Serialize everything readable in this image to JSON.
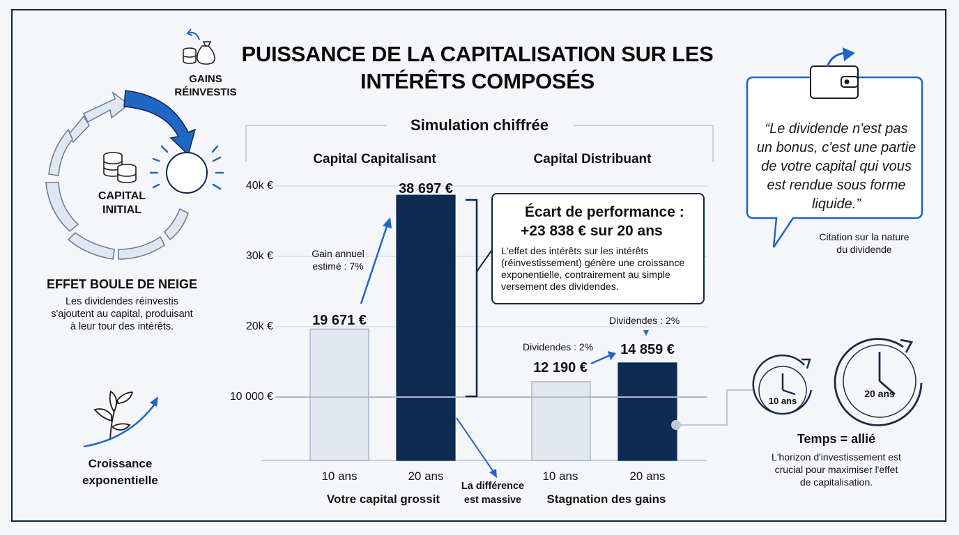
{
  "title": "PUISSANCE DE LA CAPITALISATION SUR LES INTÉRÊTS COMPOSÉS",
  "simulation_title": "Simulation chiffrée",
  "left_panel": {
    "cycle_top_label_1": "GAINS",
    "cycle_top_label_2": "RÉINVESTIS",
    "cycle_center_label_1": "CAPITAL",
    "cycle_center_label_2": "INITIAL",
    "effect_title": "EFFET BOULE DE NEIGE",
    "effect_text_1": "Les dividendes réinvestis",
    "effect_text_2": "s'ajoutent au capital, produisant",
    "effect_text_3": "à leur tour des intérêts.",
    "growth_label_1": "Croissance",
    "growth_label_2": "exponentielle"
  },
  "chart_data": {
    "type": "bar",
    "y_ticks": [
      "40k €",
      "30k €",
      "20k €",
      "10 000 €"
    ],
    "y_tick_values": [
      40000,
      30000,
      20000,
      10000
    ],
    "ylim": [
      1000,
      40000
    ],
    "grid": true,
    "groups": [
      {
        "name": "Capital Capitalisant",
        "caption": "Votre capital grossit",
        "categories": [
          "10 ans",
          "20 ans"
        ],
        "values": [
          19671,
          38697
        ],
        "value_labels": [
          "19 671 €",
          "38 697 €"
        ]
      },
      {
        "name": "Capital Distribuant",
        "caption": "Stagnation des gains",
        "categories": [
          "10 ans",
          "20 ans"
        ],
        "values": [
          12190,
          14859
        ],
        "value_labels": [
          "12 190 €",
          "14 859 €"
        ]
      }
    ],
    "colors": {
      "light_bar": "#e3e8f0",
      "dark_bar": "#0e2a52",
      "accent": "#1f66c5"
    },
    "annotations": {
      "gain_1": "Gain annuel",
      "gain_2": "estimé : 7%",
      "div_10": "Dividendes : 2%",
      "div_20": "Dividendes : 2%",
      "difference_1": "La différence",
      "difference_2": "est massive"
    }
  },
  "callout": {
    "heading_1": "Écart de performance :",
    "heading_2": "+23 838 € sur 20 ans",
    "body": "L'effet des intérêts sur les intérêts (réinvestissement) génère une croissance exponentielle, contrairement au simple versement des dividendes."
  },
  "quote": {
    "text": "“Le dividende n'est pas un bonus, c'est une partie de votre capital qui vous est rendue sous forme liquide.”",
    "caption_1": "Citation sur la nature",
    "caption_2": "du dividende"
  },
  "time_panel": {
    "clock_1": "10 ans",
    "clock_2": "20 ans",
    "title": "Temps = allié",
    "text_1": "L'horizon d'investissement est",
    "text_2": "crucial pour maximiser l'effet",
    "text_3": "de capitalisation."
  }
}
